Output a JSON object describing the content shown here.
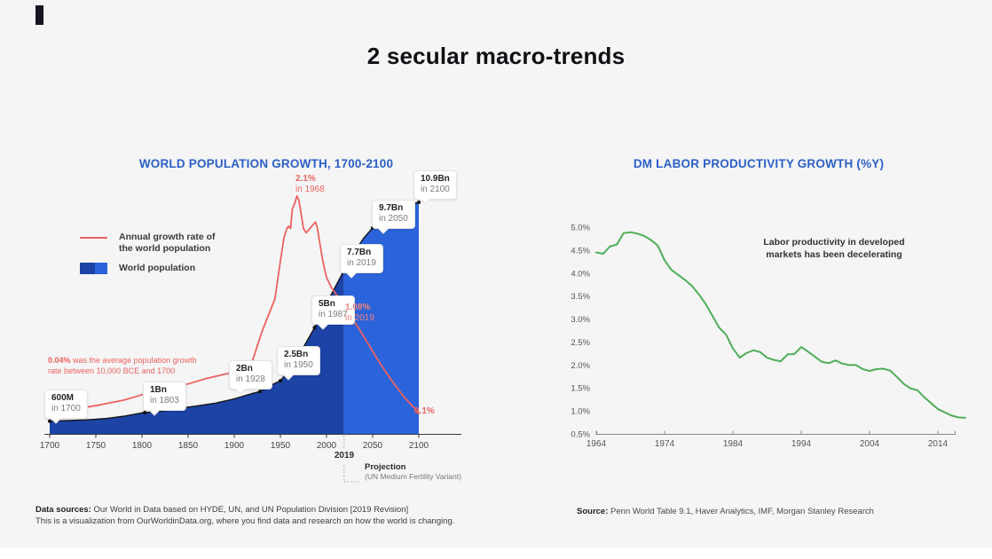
{
  "slide": {
    "title": "2 secular macro-trends"
  },
  "left": {
    "title": "WORLD POPULATION GROWTH, 1700-2100",
    "legend": {
      "growth_line_1": "Annual growth rate of",
      "growth_line_2": "the world population",
      "population": "World population"
    },
    "note_004": {
      "lead": "0.04%",
      "rest": " was the average population growth rate between 10,000 BCE and 1700"
    },
    "callouts": [
      {
        "value": "600M",
        "when": "in 1700"
      },
      {
        "value": "1Bn",
        "when": "in 1803"
      },
      {
        "value": "2Bn",
        "when": "in 1928"
      },
      {
        "value": "2.5Bn",
        "when": "in 1950"
      },
      {
        "value": "5Bn",
        "when": "in 1987"
      },
      {
        "value": "7.7Bn",
        "when": "in 2019"
      },
      {
        "value": "9.7Bn",
        "when": "in 2050"
      },
      {
        "value": "10.9Bn",
        "when": "in 2100"
      }
    ],
    "red_callouts": [
      {
        "value": "2.1%",
        "when": "in 1968"
      },
      {
        "value": "1.08%",
        "when": "in 2019"
      },
      {
        "value": "0.1%",
        "when": ""
      }
    ],
    "axis_note_year": "2019",
    "projection_label": "Projection",
    "projection_sub": "(UN Medium Fertility Variant)",
    "footer_lead": "Data sources:",
    "footer_rest": " Our World in Data based on HYDE, UN, and UN Population Division [2019 Revision]",
    "footer_line2": "This is a visualization from OurWorldinData.org, where you find data and research on how the world is changing."
  },
  "right": {
    "title": "DM LABOR PRODUCTIVITY GROWTH (%Y)",
    "annotation_line_1": "Labor productivity in developed",
    "annotation_line_2": "markets has been decelerating",
    "source_lead": "Source:",
    "source_rest": " Penn World Table 9.1, Haver Analytics, IMF, Morgan Stanley Research"
  },
  "chart_data": [
    {
      "id": "world-population-growth",
      "type": "area+line",
      "title": "WORLD POPULATION GROWTH, 1700-2100",
      "xlim": [
        1700,
        2100
      ],
      "x_ticks": [
        1700,
        1750,
        1800,
        1850,
        1900,
        1950,
        2000,
        2050,
        2100
      ],
      "projection_start": 2019,
      "legend_position": "upper-left",
      "grid": false,
      "colors": {
        "historical_area": "#1c43a5",
        "projection_area": "#2b63da",
        "growth_line": "#ee625e",
        "area_edge": "#151515"
      },
      "marker_years": [
        1700,
        1803,
        1928,
        1950,
        1987,
        2019,
        2050,
        2100
      ],
      "population_series": {
        "name": "World population",
        "unit": "billions",
        "ylim": [
          0,
          11
        ],
        "points": [
          [
            1700,
            0.6
          ],
          [
            1720,
            0.63
          ],
          [
            1740,
            0.66
          ],
          [
            1760,
            0.72
          ],
          [
            1780,
            0.83
          ],
          [
            1800,
            0.99
          ],
          [
            1803,
            1.0
          ],
          [
            1820,
            1.07
          ],
          [
            1840,
            1.19
          ],
          [
            1850,
            1.26
          ],
          [
            1860,
            1.32
          ],
          [
            1880,
            1.45
          ],
          [
            1900,
            1.65
          ],
          [
            1910,
            1.78
          ],
          [
            1920,
            1.91
          ],
          [
            1928,
            2.0
          ],
          [
            1940,
            2.3
          ],
          [
            1950,
            2.5
          ],
          [
            1960,
            3.03
          ],
          [
            1970,
            3.7
          ],
          [
            1980,
            4.46
          ],
          [
            1987,
            5.0
          ],
          [
            1990,
            5.33
          ],
          [
            2000,
            6.14
          ],
          [
            2010,
            6.96
          ],
          [
            2019,
            7.7
          ],
          [
            2030,
            8.55
          ],
          [
            2040,
            9.2
          ],
          [
            2050,
            9.7
          ],
          [
            2060,
            10.15
          ],
          [
            2070,
            10.46
          ],
          [
            2080,
            10.67
          ],
          [
            2090,
            10.81
          ],
          [
            2100,
            10.9
          ]
        ]
      },
      "growth_series": {
        "name": "Annual growth rate of the world population",
        "unit": "percent",
        "ylim": [
          0,
          2.2
        ],
        "points": [
          [
            1700,
            0.1
          ],
          [
            1720,
            0.13
          ],
          [
            1750,
            0.17
          ],
          [
            1780,
            0.22
          ],
          [
            1800,
            0.27
          ],
          [
            1820,
            0.31
          ],
          [
            1850,
            0.37
          ],
          [
            1870,
            0.42
          ],
          [
            1900,
            0.48
          ],
          [
            1910,
            0.52
          ],
          [
            1920,
            0.59
          ],
          [
            1930,
            0.85
          ],
          [
            1937,
            1.0
          ],
          [
            1944,
            1.15
          ],
          [
            1950,
            1.5
          ],
          [
            1954,
            1.72
          ],
          [
            1957,
            1.8
          ],
          [
            1959,
            1.82
          ],
          [
            1961,
            1.8
          ],
          [
            1963,
            1.98
          ],
          [
            1965,
            2.02
          ],
          [
            1968,
            2.1
          ],
          [
            1970,
            2.06
          ],
          [
            1972,
            1.96
          ],
          [
            1975,
            1.8
          ],
          [
            1978,
            1.76
          ],
          [
            1981,
            1.79
          ],
          [
            1985,
            1.83
          ],
          [
            1988,
            1.86
          ],
          [
            1990,
            1.81
          ],
          [
            1993,
            1.65
          ],
          [
            1996,
            1.5
          ],
          [
            2000,
            1.35
          ],
          [
            2005,
            1.26
          ],
          [
            2010,
            1.2
          ],
          [
            2015,
            1.13
          ],
          [
            2019,
            1.08
          ],
          [
            2025,
            1.0
          ],
          [
            2035,
            0.88
          ],
          [
            2045,
            0.74
          ],
          [
            2055,
            0.6
          ],
          [
            2065,
            0.47
          ],
          [
            2075,
            0.35
          ],
          [
            2085,
            0.24
          ],
          [
            2095,
            0.15
          ],
          [
            2100,
            0.1
          ]
        ]
      },
      "annotations": [
        "600M in 1700",
        "1Bn in 1803",
        "2Bn in 1928",
        "2.5Bn in 1950",
        "5Bn in 1987",
        "7.7Bn in 2019",
        "9.7Bn in 2050",
        "10.9Bn in 2100",
        "2.1% in 1968",
        "1.08% in 2019",
        "0.1% in 2100",
        "0.04% was the average population growth rate between 10,000 BCE and 1700"
      ]
    },
    {
      "id": "dm-labor-productivity-growth",
      "type": "line",
      "title": "DM LABOR PRODUCTIVITY GROWTH (%Y)",
      "xlim": [
        1964,
        2018
      ],
      "ylim": [
        0.5,
        5.0
      ],
      "x_ticks": [
        1964,
        1974,
        1984,
        1994,
        2004,
        2014
      ],
      "y_ticks": [
        5.0,
        4.5,
        4.0,
        3.5,
        3.0,
        2.5,
        2.0,
        1.5,
        1.0,
        0.5
      ],
      "y_tick_suffix": "%",
      "grid": false,
      "color": "#4fae57",
      "series": [
        {
          "name": "DM labor productivity growth (%Y)",
          "points": [
            [
              1964,
              4.45
            ],
            [
              1965,
              4.42
            ],
            [
              1966,
              4.58
            ],
            [
              1967,
              4.62
            ],
            [
              1968,
              4.87
            ],
            [
              1969,
              4.89
            ],
            [
              1970,
              4.86
            ],
            [
              1971,
              4.81
            ],
            [
              1972,
              4.72
            ],
            [
              1973,
              4.6
            ],
            [
              1974,
              4.28
            ],
            [
              1975,
              4.07
            ],
            [
              1976,
              3.96
            ],
            [
              1977,
              3.85
            ],
            [
              1978,
              3.72
            ],
            [
              1979,
              3.54
            ],
            [
              1980,
              3.33
            ],
            [
              1981,
              3.07
            ],
            [
              1982,
              2.81
            ],
            [
              1983,
              2.66
            ],
            [
              1984,
              2.36
            ],
            [
              1985,
              2.16
            ],
            [
              1986,
              2.26
            ],
            [
              1987,
              2.32
            ],
            [
              1988,
              2.28
            ],
            [
              1989,
              2.16
            ],
            [
              1990,
              2.11
            ],
            [
              1991,
              2.08
            ],
            [
              1992,
              2.23
            ],
            [
              1993,
              2.24
            ],
            [
              1994,
              2.39
            ],
            [
              1995,
              2.29
            ],
            [
              1996,
              2.18
            ],
            [
              1997,
              2.07
            ],
            [
              1998,
              2.04
            ],
            [
              1999,
              2.1
            ],
            [
              2000,
              2.03
            ],
            [
              2001,
              2.0
            ],
            [
              2002,
              2.0
            ],
            [
              2003,
              1.91
            ],
            [
              2004,
              1.87
            ],
            [
              2005,
              1.91
            ],
            [
              2006,
              1.92
            ],
            [
              2007,
              1.88
            ],
            [
              2008,
              1.74
            ],
            [
              2009,
              1.59
            ],
            [
              2010,
              1.49
            ],
            [
              2011,
              1.45
            ],
            [
              2012,
              1.3
            ],
            [
              2013,
              1.17
            ],
            [
              2014,
              1.04
            ],
            [
              2015,
              0.97
            ],
            [
              2016,
              0.9
            ],
            [
              2017,
              0.86
            ],
            [
              2018,
              0.85
            ]
          ]
        }
      ]
    }
  ]
}
